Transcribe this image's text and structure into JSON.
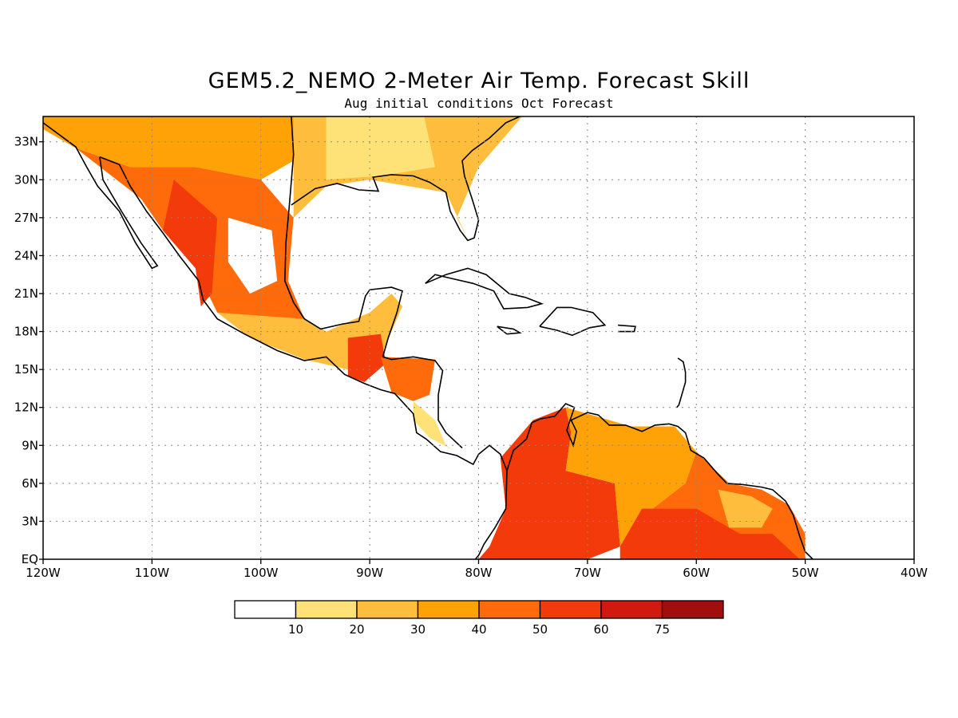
{
  "title": "GEM5.2_NEMO 2-Meter Air Temp. Forecast Skill",
  "subtitle": "Aug initial conditions  Oct Forecast",
  "map": {
    "lon_range": [
      -120,
      -40
    ],
    "lat_range": [
      0,
      35
    ],
    "lat_ticks": [
      {
        "value": 33,
        "label": "33N"
      },
      {
        "value": 30,
        "label": "30N"
      },
      {
        "value": 27,
        "label": "27N"
      },
      {
        "value": 24,
        "label": "24N"
      },
      {
        "value": 21,
        "label": "21N"
      },
      {
        "value": 18,
        "label": "18N"
      },
      {
        "value": 15,
        "label": "15N"
      },
      {
        "value": 12,
        "label": "12N"
      },
      {
        "value": 9,
        "label": "9N"
      },
      {
        "value": 6,
        "label": "6N"
      },
      {
        "value": 3,
        "label": "3N"
      },
      {
        "value": 0,
        "label": "EQ"
      }
    ],
    "lon_ticks": [
      {
        "value": -120,
        "label": "120W"
      },
      {
        "value": -110,
        "label": "110W"
      },
      {
        "value": -100,
        "label": "100W"
      },
      {
        "value": -90,
        "label": "90W"
      },
      {
        "value": -80,
        "label": "80W"
      },
      {
        "value": -70,
        "label": "70W"
      },
      {
        "value": -60,
        "label": "60W"
      },
      {
        "value": -50,
        "label": "50W"
      },
      {
        "value": -40,
        "label": "40W"
      }
    ],
    "grid": true,
    "regions": [
      {
        "name": "southwest-us",
        "value": 38,
        "pts": [
          [
            -120,
            35
          ],
          [
            -97,
            35
          ],
          [
            -96,
            32
          ],
          [
            -100,
            30
          ],
          [
            -106,
            31
          ],
          [
            -112,
            31
          ],
          [
            -117,
            32.5
          ],
          [
            -120,
            34
          ]
        ]
      },
      {
        "name": "southeast-us",
        "value": 22,
        "pts": [
          [
            -97,
            35
          ],
          [
            -76,
            35
          ],
          [
            -80,
            31
          ],
          [
            -82,
            27
          ],
          [
            -81,
            25.3
          ],
          [
            -83,
            29
          ],
          [
            -90,
            30
          ],
          [
            -94,
            29.5
          ],
          [
            -97,
            27
          ],
          [
            -97,
            32
          ]
        ]
      },
      {
        "name": "southeast-us-core",
        "value": 12,
        "pts": [
          [
            -94,
            35
          ],
          [
            -85,
            35
          ],
          [
            -84,
            31
          ],
          [
            -89,
            30.3
          ],
          [
            -94,
            30
          ]
        ]
      },
      {
        "name": "mexico-north",
        "value": 42,
        "pts": [
          [
            -117,
            32.5
          ],
          [
            -112,
            31
          ],
          [
            -106,
            31
          ],
          [
            -100,
            30
          ],
          [
            -97,
            27
          ],
          [
            -97.5,
            22
          ],
          [
            -96,
            19
          ],
          [
            -100,
            18
          ],
          [
            -104,
            19.5
          ],
          [
            -106,
            23
          ],
          [
            -109,
            26
          ],
          [
            -111,
            28.5
          ]
        ]
      },
      {
        "name": "mexico-interior-low",
        "value": 5,
        "pts": [
          [
            -103,
            27
          ],
          [
            -99,
            26
          ],
          [
            -98.5,
            22
          ],
          [
            -101,
            21
          ],
          [
            -103,
            23.5
          ]
        ]
      },
      {
        "name": "mexico-west-coast",
        "value": 55,
        "pts": [
          [
            -108,
            30
          ],
          [
            -104,
            27
          ],
          [
            -104.5,
            21
          ],
          [
            -105.5,
            20
          ],
          [
            -106,
            23
          ],
          [
            -109,
            26
          ]
        ]
      },
      {
        "name": "mexico-south",
        "value": 25,
        "pts": [
          [
            -104,
            19.5
          ],
          [
            -96,
            19
          ],
          [
            -94,
            18
          ],
          [
            -90,
            19.5
          ],
          [
            -88,
            21
          ],
          [
            -87,
            20
          ],
          [
            -89,
            16
          ],
          [
            -92,
            15
          ],
          [
            -96,
            15.8
          ],
          [
            -101,
            17.5
          ]
        ]
      },
      {
        "name": "guatemala",
        "value": 55,
        "pts": [
          [
            -92,
            17.5
          ],
          [
            -89,
            17.8
          ],
          [
            -88.5,
            15.5
          ],
          [
            -90.5,
            14
          ],
          [
            -92,
            14.5
          ]
        ]
      },
      {
        "name": "honduras-nicaragua",
        "value": 45,
        "pts": [
          [
            -89,
            16
          ],
          [
            -84,
            15.8
          ],
          [
            -84.5,
            13
          ],
          [
            -86,
            12.5
          ],
          [
            -88,
            13.2
          ]
        ]
      },
      {
        "name": "central-america-south",
        "value": 12,
        "pts": [
          [
            -86,
            12.5
          ],
          [
            -84,
            11
          ],
          [
            -83,
            9
          ],
          [
            -82,
            8.5
          ],
          [
            -84.5,
            9.6
          ],
          [
            -86,
            11
          ]
        ]
      },
      {
        "name": "colombia",
        "value": 50,
        "pts": [
          [
            -78,
            8
          ],
          [
            -75,
            11
          ],
          [
            -72,
            12
          ],
          [
            -71.5,
            10
          ],
          [
            -72,
            7
          ],
          [
            -67.5,
            6
          ],
          [
            -67,
            1
          ],
          [
            -70,
            0
          ],
          [
            -80,
            0
          ],
          [
            -79,
            1
          ],
          [
            -77.5,
            4
          ]
        ]
      },
      {
        "name": "venezuela",
        "value": 32,
        "pts": [
          [
            -72,
            12
          ],
          [
            -70,
            11.5
          ],
          [
            -66,
            10.5
          ],
          [
            -62,
            10.5
          ],
          [
            -60,
            8.5
          ],
          [
            -61,
            6
          ],
          [
            -64,
            4
          ],
          [
            -67,
            1
          ],
          [
            -67.5,
            6
          ],
          [
            -72,
            7
          ],
          [
            -71.5,
            10
          ]
        ]
      },
      {
        "name": "guiana-brazil",
        "value": 45,
        "pts": [
          [
            -61,
            6
          ],
          [
            -60,
            8.5
          ],
          [
            -57,
            6
          ],
          [
            -54,
            5.5
          ],
          [
            -51.5,
            4.3
          ],
          [
            -50,
            2
          ],
          [
            -50,
            0
          ],
          [
            -67,
            0
          ],
          [
            -67,
            1
          ],
          [
            -64,
            4
          ]
        ]
      },
      {
        "name": "brazil-north-high",
        "value": 58,
        "pts": [
          [
            -65,
            4
          ],
          [
            -60,
            4
          ],
          [
            -56,
            2
          ],
          [
            -53,
            2
          ],
          [
            -50.5,
            0
          ],
          [
            -67,
            0
          ],
          [
            -67,
            1
          ]
        ]
      },
      {
        "name": "suriname-core",
        "value": 25,
        "pts": [
          [
            -58,
            5.5
          ],
          [
            -55,
            5
          ],
          [
            -53,
            4
          ],
          [
            -54,
            2.5
          ],
          [
            -57,
            2.5
          ]
        ]
      }
    ]
  },
  "colorbar": {
    "labels": [
      "10",
      "20",
      "30",
      "40",
      "50",
      "60",
      "75"
    ],
    "colors": [
      "#ffffff",
      "#ffe277",
      "#ffbd3e",
      "#ffa208",
      "#ff6b0a",
      "#f23a0a",
      "#d01a0f",
      "#a00e0e"
    ]
  }
}
